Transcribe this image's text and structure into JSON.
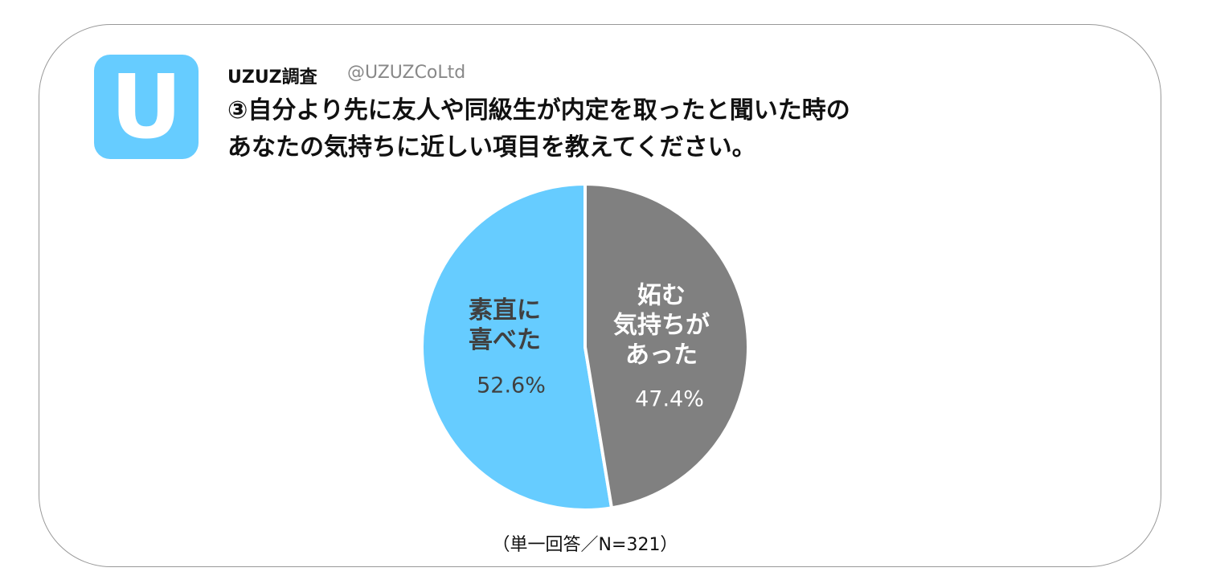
{
  "header": {
    "logo": "U",
    "account_name": "UZUZ調査",
    "handle": "@UZUZCoLtd"
  },
  "chart_data": {
    "type": "pie",
    "title": "③自分より先に友人や同級生が内定を取ったと聞いた時の\nあなたの気持ちに近しい項目を教えてください。",
    "categories": [
      "素直に\n喜べた",
      "妬む\n気持ちが\nあった"
    ],
    "values": [
      52.6,
      47.4
    ],
    "value_labels": [
      "52.6%",
      "47.4%"
    ],
    "colors": [
      "#66ccff",
      "#808080"
    ],
    "note": "（単一回答／N=321）"
  }
}
